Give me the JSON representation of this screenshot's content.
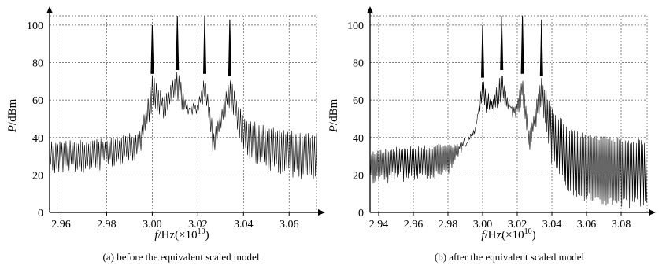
{
  "chart_data": [
    {
      "type": "line",
      "caption": "(a) before the equivalent scaled model",
      "ylabel_italic": "P",
      "ylabel_rest": "/dBm",
      "xlabel_italic": "f",
      "xlabel_rest": "/Hz(×10",
      "xlabel_exp": "10",
      "xlabel_close": ")",
      "xlim": [
        2.955,
        3.072
      ],
      "ylim": [
        0,
        105
      ],
      "xticks": [
        "2.96",
        "2.98",
        "3.00",
        "3.02",
        "3.04",
        "3.06"
      ],
      "xtick_values": [
        2.96,
        2.98,
        3.0,
        3.02,
        3.04,
        3.06
      ],
      "yticks": [
        "0",
        "20",
        "40",
        "60",
        "80",
        "100"
      ],
      "ytick_values": [
        0,
        20,
        40,
        60,
        80,
        100
      ],
      "grid": true,
      "peaks": [
        3.0,
        3.011,
        3.023,
        3.034
      ],
      "peak_values": [
        100,
        105,
        105,
        103
      ],
      "series": [
        {
          "x": [
            2.955,
            2.97,
            2.985,
            2.995,
            3.0,
            3.005,
            3.011,
            3.016,
            3.02,
            3.023,
            3.027,
            3.03,
            3.034,
            3.04,
            3.05,
            3.06,
            3.072
          ],
          "upper": [
            38,
            39,
            41,
            44,
            74,
            62,
            76,
            57,
            60,
            74,
            45,
            55,
            73,
            51,
            46,
            44,
            42
          ],
          "lower": [
            20,
            21,
            23,
            28,
            55,
            50,
            58,
            50,
            50,
            58,
            28,
            42,
            56,
            30,
            22,
            18,
            16
          ]
        }
      ]
    },
    {
      "type": "line",
      "caption": "(b) after the equivalent scaled model",
      "ylabel_italic": "P",
      "ylabel_rest": "/dBm",
      "xlabel_italic": "f",
      "xlabel_rest": "/Hz(×10",
      "xlabel_exp": "10",
      "xlabel_close": ")",
      "xlim": [
        2.935,
        3.095
      ],
      "ylim": [
        0,
        105
      ],
      "xticks": [
        "2.94",
        "2.96",
        "2.98",
        "3.00",
        "3.02",
        "3.04",
        "3.06",
        "3.08"
      ],
      "xtick_values": [
        2.94,
        2.96,
        2.98,
        3.0,
        3.02,
        3.04,
        3.06,
        3.08
      ],
      "yticks": [
        "0",
        "20",
        "40",
        "60",
        "80",
        "100"
      ],
      "ytick_values": [
        0,
        20,
        40,
        60,
        80,
        100
      ],
      "grid": true,
      "peaks": [
        3.0,
        3.011,
        3.023,
        3.034
      ],
      "peak_values": [
        100,
        105,
        105,
        103
      ],
      "series": [
        {
          "x": [
            2.935,
            2.95,
            2.965,
            2.98,
            2.99,
            2.995,
            3.0,
            3.005,
            3.011,
            3.016,
            3.02,
            3.023,
            3.027,
            3.03,
            3.034,
            3.04,
            3.05,
            3.06,
            3.07,
            3.08,
            3.095
          ],
          "upper": [
            33,
            35,
            36,
            37,
            38,
            42,
            72,
            60,
            76,
            57,
            60,
            74,
            45,
            55,
            73,
            56,
            46,
            42,
            41,
            40,
            39
          ],
          "lower": [
            15,
            16,
            16,
            18,
            35,
            40,
            55,
            50,
            58,
            50,
            50,
            58,
            28,
            42,
            56,
            25,
            10,
            5,
            3,
            2,
            2
          ]
        }
      ]
    }
  ]
}
